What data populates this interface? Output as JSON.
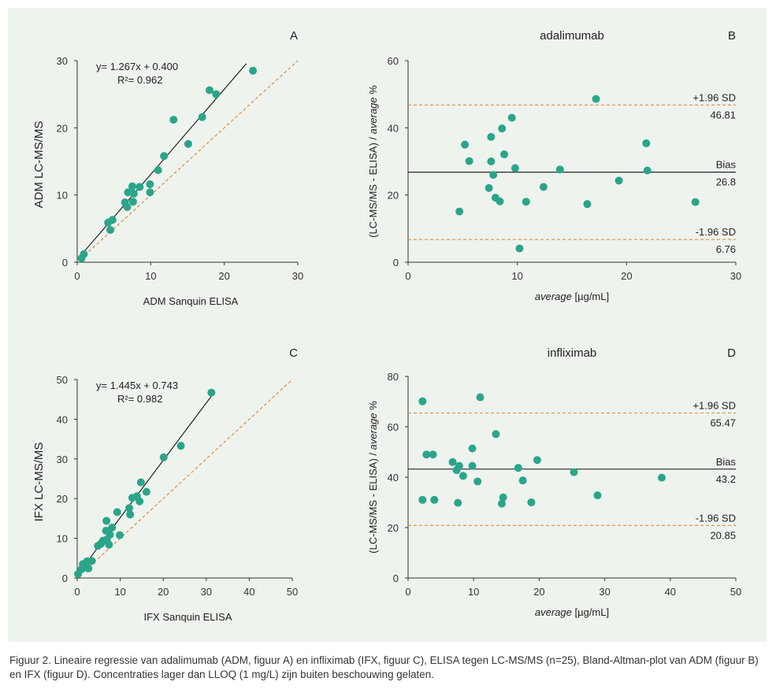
{
  "colors": {
    "background": "#eef3ee",
    "point": "#2aa58a",
    "regression": "#111111",
    "identity": "#e08a3c",
    "axis": "#333333"
  },
  "chart_data": [
    {
      "panel": "A",
      "type": "scatter",
      "title": "",
      "xlabel": "ADM Sanquin ELISA",
      "ylabel": "ADM LC-MS/MS",
      "xlim": [
        0,
        30
      ],
      "ylim": [
        0,
        30
      ],
      "xticks": [
        0,
        10,
        20,
        30
      ],
      "yticks": [
        0,
        10,
        20,
        30
      ],
      "regression": {
        "slope": 1.267,
        "intercept": 0.4,
        "x_range": [
          0.5,
          23
        ]
      },
      "identity_line": {
        "x_range": [
          1,
          30
        ]
      },
      "annotation": {
        "equation": "y= 1.267x + 0.400",
        "r2": "R²= 0.962"
      },
      "points": [
        [
          0.6,
          0.6
        ],
        [
          0.9,
          1.2
        ],
        [
          4.2,
          5.9
        ],
        [
          4.5,
          4.8
        ],
        [
          4.8,
          6.3
        ],
        [
          6.5,
          8.9
        ],
        [
          6.8,
          8.2
        ],
        [
          6.9,
          10.4
        ],
        [
          7.5,
          11.3
        ],
        [
          7.6,
          9.0
        ],
        [
          7.7,
          10.2
        ],
        [
          8.5,
          11.2
        ],
        [
          9.9,
          11.6
        ],
        [
          9.9,
          10.4
        ],
        [
          11.0,
          13.7
        ],
        [
          11.8,
          15.8
        ],
        [
          13.1,
          21.2
        ],
        [
          15.1,
          17.6
        ],
        [
          17.0,
          21.6
        ],
        [
          18.0,
          25.6
        ],
        [
          18.9,
          25.0
        ],
        [
          23.9,
          28.5
        ]
      ]
    },
    {
      "panel": "B",
      "type": "scatter",
      "title": "adalimumab",
      "xlabel": "average [µg/mL]",
      "ylabel": "(LC-MS/MS - ELISA) / average %",
      "xlim": [
        0,
        30
      ],
      "ylim": [
        0,
        60
      ],
      "xticks": [
        0,
        10,
        20,
        30
      ],
      "yticks": [
        0,
        20,
        40,
        60
      ],
      "ref_lines": [
        {
          "label": "+1.96 SD",
          "value_text": "46.81",
          "y": 46.81,
          "style": "dashed"
        },
        {
          "label": "Bias",
          "value_text": "26.8",
          "y": 26.8,
          "style": "solid"
        },
        {
          "label": "-1.96 SD",
          "value_text": "6.76",
          "y": 6.76,
          "style": "dashed"
        }
      ],
      "points": [
        [
          4.7,
          15.1
        ],
        [
          5.2,
          35.0
        ],
        [
          5.6,
          30.1
        ],
        [
          7.4,
          22.1
        ],
        [
          7.6,
          37.3
        ],
        [
          7.6,
          30.0
        ],
        [
          7.8,
          26.0
        ],
        [
          8.0,
          19.2
        ],
        [
          8.4,
          18.1
        ],
        [
          8.6,
          39.8
        ],
        [
          8.8,
          32.1
        ],
        [
          9.5,
          43.0
        ],
        [
          9.8,
          28.0
        ],
        [
          10.2,
          4.1
        ],
        [
          10.8,
          18.0
        ],
        [
          12.4,
          22.4
        ],
        [
          13.9,
          27.6
        ],
        [
          16.4,
          17.3
        ],
        [
          17.2,
          48.6
        ],
        [
          19.3,
          24.3
        ],
        [
          21.8,
          35.4
        ],
        [
          21.9,
          27.3
        ],
        [
          26.3,
          17.9
        ]
      ]
    },
    {
      "panel": "C",
      "type": "scatter",
      "title": "",
      "xlabel": "IFX Sanquin ELISA",
      "ylabel": "IFX LC-MS/MS",
      "xlim": [
        0,
        50
      ],
      "ylim": [
        0,
        50
      ],
      "xticks": [
        0,
        10,
        20,
        30,
        40,
        50
      ],
      "yticks": [
        0,
        10,
        20,
        30,
        40,
        50
      ],
      "regression": {
        "slope": 1.445,
        "intercept": 0.743,
        "x_range": [
          0.2,
          31.2
        ]
      },
      "identity_line": {
        "x_range": [
          2,
          50
        ]
      },
      "annotation": {
        "equation": "y= 1.445x + 0.743",
        "r2": "R²= 0.982"
      },
      "points": [
        [
          0.2,
          1.0
        ],
        [
          1.0,
          2.2
        ],
        [
          1.3,
          3.5
        ],
        [
          2.0,
          2.8
        ],
        [
          2.3,
          4.2
        ],
        [
          2.6,
          2.4
        ],
        [
          3.4,
          4.3
        ],
        [
          4.8,
          8.1
        ],
        [
          5.5,
          8.6
        ],
        [
          6.0,
          9.4
        ],
        [
          6.7,
          11.9
        ],
        [
          6.8,
          14.4
        ],
        [
          6.9,
          9.7
        ],
        [
          7.4,
          8.4
        ],
        [
          7.6,
          10.9
        ],
        [
          8.1,
          12.7
        ],
        [
          9.3,
          16.6
        ],
        [
          9.9,
          10.8
        ],
        [
          12.1,
          17.6
        ],
        [
          12.3,
          16.0
        ],
        [
          12.8,
          20.2
        ],
        [
          13.9,
          20.6
        ],
        [
          14.5,
          19.3
        ],
        [
          14.8,
          24.1
        ],
        [
          16.1,
          21.7
        ],
        [
          20.1,
          30.4
        ],
        [
          24.1,
          33.3
        ],
        [
          31.2,
          46.7
        ]
      ]
    },
    {
      "panel": "D",
      "type": "scatter",
      "title": "infliximab",
      "xlabel": "average [µg/mL]",
      "ylabel": "(LC-MS/MS - ELISA) / average %",
      "xlim": [
        0,
        50
      ],
      "ylim": [
        0,
        80
      ],
      "xticks": [
        0,
        10,
        20,
        30,
        40,
        50
      ],
      "yticks": [
        0,
        20,
        40,
        60,
        80
      ],
      "ref_lines": [
        {
          "label": "+1.96 SD",
          "value_text": "65.47",
          "y": 65.47,
          "style": "dashed"
        },
        {
          "label": "Bias",
          "value_text": "43.2",
          "y": 43.2,
          "style": "solid"
        },
        {
          "label": "-1.96 SD",
          "value_text": "20.85",
          "y": 20.85,
          "style": "dashed"
        }
      ],
      "points": [
        [
          2.2,
          70.1
        ],
        [
          2.2,
          31.0
        ],
        [
          2.8,
          49.0
        ],
        [
          3.8,
          49.0
        ],
        [
          4.0,
          31.0
        ],
        [
          6.8,
          46.0
        ],
        [
          7.4,
          42.8
        ],
        [
          7.6,
          29.8
        ],
        [
          7.8,
          44.5
        ],
        [
          8.4,
          40.5
        ],
        [
          9.8,
          51.4
        ],
        [
          9.8,
          44.5
        ],
        [
          10.6,
          38.3
        ],
        [
          11.0,
          71.7
        ],
        [
          13.4,
          57.1
        ],
        [
          14.3,
          29.5
        ],
        [
          14.5,
          32.0
        ],
        [
          16.8,
          43.7
        ],
        [
          17.5,
          38.7
        ],
        [
          18.8,
          30.0
        ],
        [
          19.7,
          46.8
        ],
        [
          25.3,
          42.0
        ],
        [
          28.9,
          32.8
        ],
        [
          38.7,
          39.8
        ]
      ]
    }
  ],
  "caption": "Figuur 2. Lineaire regressie van adalimumab (ADM, figuur A) en infliximab (IFX, figuur C), ELISA tegen LC-MS/MS (n=25), Bland-Altman-plot van ADM (figuur B) en IFX (figuur D). Concentraties lager dan LLOQ (1 mg/L) zijn buiten beschouwing gelaten."
}
